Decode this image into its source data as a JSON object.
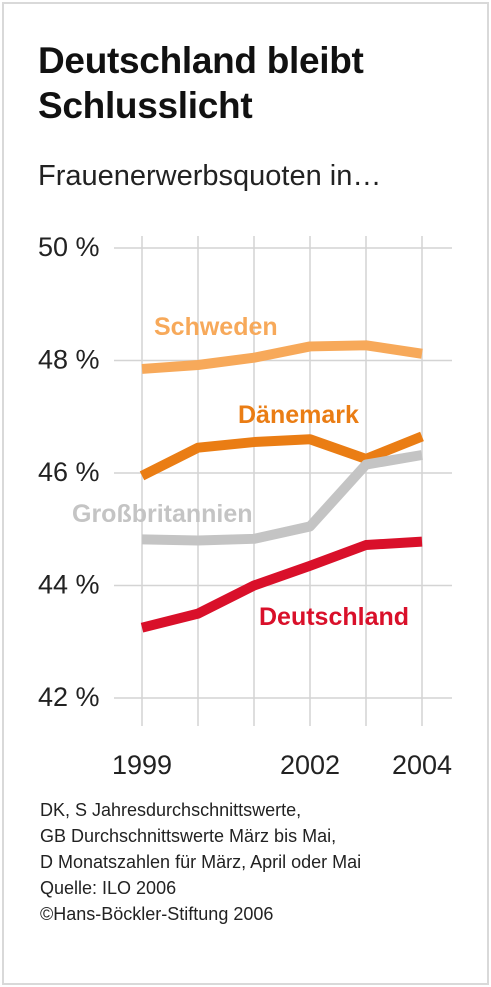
{
  "title_line1": "Deutschland bleibt",
  "title_line2": "Schlusslicht",
  "subtitle": "Frauenerwerbsquoten in…",
  "notes": [
    "DK, S Jahresdurchschnittswerte,",
    "GB Durchschnittswerte März bis Mai,",
    "D Monatszahlen für März, April oder Mai",
    "Quelle: ILO 2006",
    "©Hans-Böckler-Stiftung 2006"
  ],
  "chart_data": {
    "type": "line",
    "x": [
      1999,
      2000,
      2001,
      2002,
      2003,
      2004
    ],
    "x_tick_labels": [
      {
        "x": 1999,
        "label": "1999"
      },
      {
        "x": 2002,
        "label": "2002"
      },
      {
        "x": 2004,
        "label": "2004"
      }
    ],
    "ylim": [
      42,
      50
    ],
    "y_ticks": [
      {
        "value": 50,
        "label": "50 %"
      },
      {
        "value": 48,
        "label": "48 %"
      },
      {
        "value": 46,
        "label": "46 %"
      },
      {
        "value": 44,
        "label": "44 %"
      },
      {
        "value": 42,
        "label": "42 %"
      }
    ],
    "grid": true,
    "series": [
      {
        "name": "Schweden",
        "color": "#f7a95a",
        "values": [
          47.85,
          47.92,
          48.05,
          48.25,
          48.27,
          48.12
        ]
      },
      {
        "name": "Dänemark",
        "color": "#ea7d14",
        "values": [
          45.95,
          46.45,
          46.55,
          46.6,
          46.25,
          46.65
        ]
      },
      {
        "name": "Großbritannien",
        "color": "#c4c4c4",
        "values": [
          44.82,
          44.8,
          44.83,
          45.05,
          46.15,
          46.32
        ]
      },
      {
        "name": "Deutschland",
        "color": "#d9102a",
        "values": [
          43.25,
          43.5,
          44.0,
          44.35,
          44.72,
          44.78
        ]
      }
    ]
  }
}
